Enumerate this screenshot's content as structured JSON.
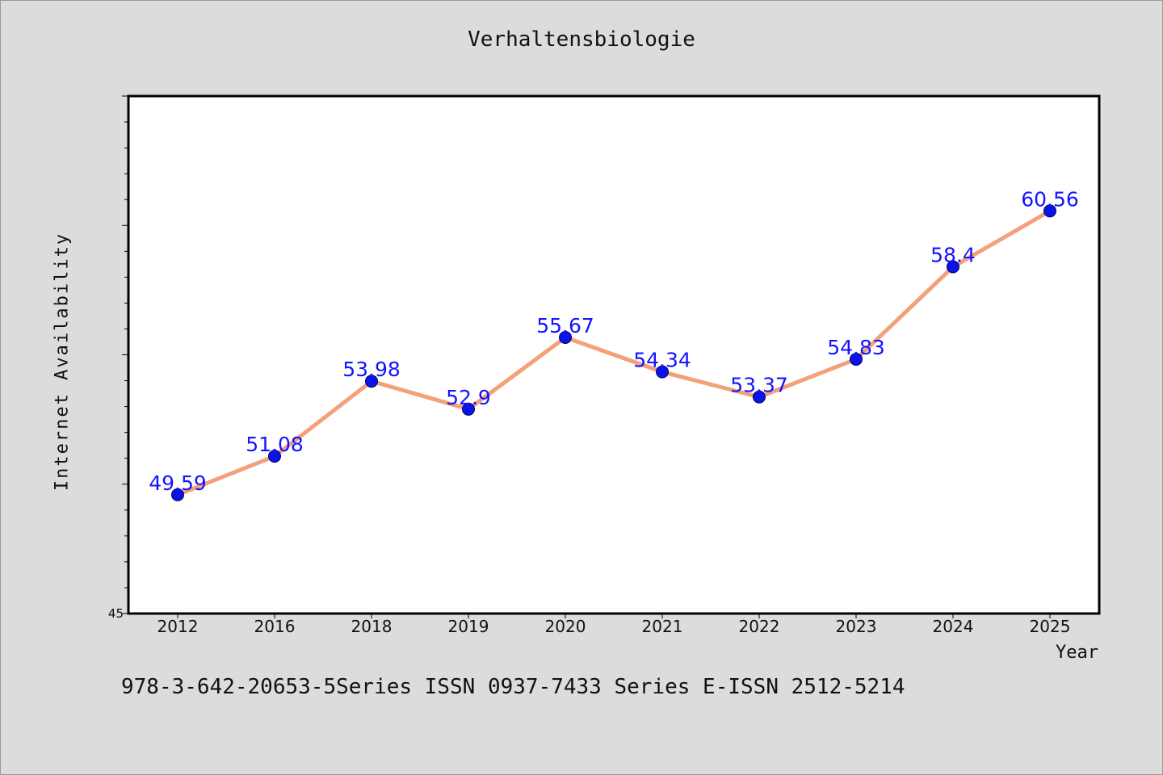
{
  "chart_data": {
    "type": "line",
    "title": "Verhaltensbiologie",
    "xlabel": "Year",
    "ylabel": "Internet Availability",
    "categories": [
      "2012",
      "2016",
      "2018",
      "2019",
      "2020",
      "2021",
      "2022",
      "2023",
      "2024",
      "2025"
    ],
    "series": [
      {
        "values": [
          49.59,
          51.08,
          53.98,
          52.9,
          55.67,
          54.34,
          53.37,
          54.83,
          58.4,
          60.56
        ],
        "line_color": "#f4a07a",
        "marker_color": "#0a14e6"
      }
    ],
    "data_labels": [
      "49.59",
      "51.08",
      "53.98",
      "52.9",
      "55.67",
      "54.34",
      "53.37",
      "54.83",
      "58.4",
      "60.56"
    ],
    "data_label_color": "#1414ff",
    "ylim": [
      45,
      65
    ],
    "y_tick_labels": [
      "45"
    ],
    "grid": false,
    "legend": "none"
  },
  "footer_note": "978-3-642-20653-5Series ISSN 0937-7433 Series E-ISSN 2512-5214"
}
